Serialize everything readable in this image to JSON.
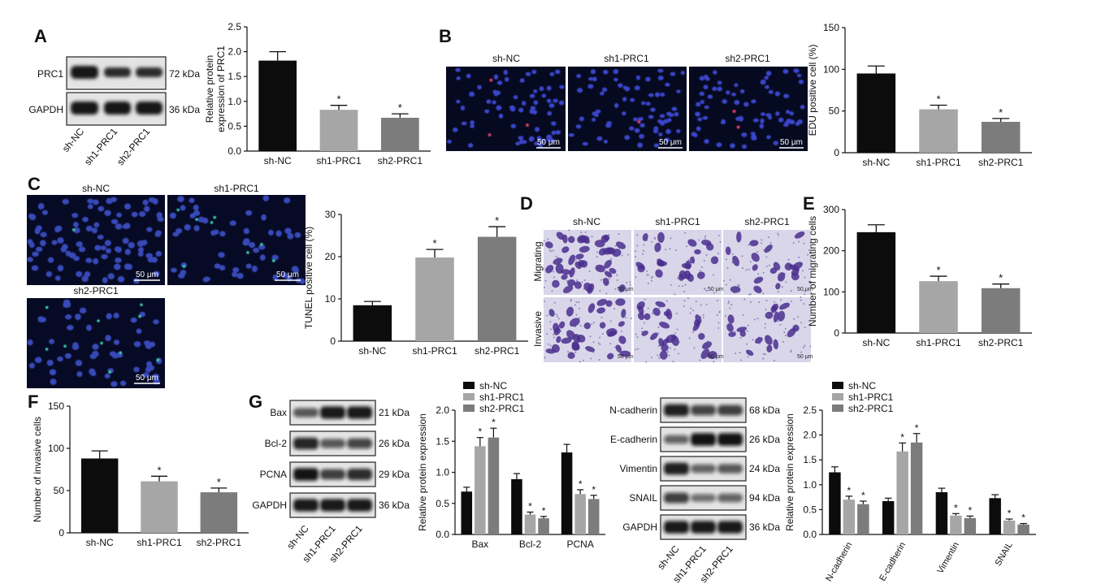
{
  "colors": {
    "black": "#0c0c0c",
    "light_gray": "#a6a6a6",
    "dark_gray": "#7c7c7c"
  },
  "panel_letters": [
    "A",
    "B",
    "C",
    "D",
    "E",
    "F",
    "G"
  ],
  "conditions": [
    "sh-NC",
    "sh1-PRC1",
    "sh2-PRC1"
  ],
  "blotA": {
    "proteins": [
      "PRC1",
      "GAPDH"
    ],
    "kda": [
      "72 kDa",
      "36 kDa"
    ]
  },
  "blotG1": {
    "proteins": [
      "Bax",
      "Bcl-2",
      "PCNA",
      "GAPDH"
    ],
    "kda": [
      "21 kDa",
      "26 kDa",
      "29 kDa",
      "36 kDa"
    ]
  },
  "blotG2": {
    "proteins": [
      "N-cadherin",
      "E-cadherin",
      "Vimentin",
      "SNAIL",
      "GAPDH"
    ],
    "kda": [
      "68 kDa",
      "26 kDa",
      "24 kDa",
      "94 kDa",
      "36 kDa"
    ]
  },
  "micrographs": {
    "scale": "50 μm",
    "row_labels": [
      "Migrating",
      "Invasive"
    ]
  },
  "significance_mark": "*",
  "chart_data": [
    {
      "id": "A",
      "type": "bar",
      "categories": [
        "sh-NC",
        "sh1-PRC1",
        "sh2-PRC1"
      ],
      "values": [
        1.82,
        0.83,
        0.67
      ],
      "errors": [
        0.18,
        0.09,
        0.08
      ],
      "sig": [
        false,
        true,
        true
      ],
      "title": "",
      "xlabel": "",
      "ylabel": "Relative protein expression of PRC1",
      "ylim": [
        0,
        2.5
      ],
      "ticks": [
        0.0,
        0.5,
        1.0,
        1.5,
        2.0,
        2.5
      ],
      "tick_labels": [
        "0.0",
        "0.5",
        "1.0",
        "1.5",
        "2.0",
        "2.5"
      ]
    },
    {
      "id": "B",
      "type": "bar",
      "categories": [
        "sh-NC",
        "sh1-PRC1",
        "sh2-PRC1"
      ],
      "values": [
        95,
        52,
        37
      ],
      "errors": [
        9,
        5,
        4
      ],
      "sig": [
        false,
        true,
        true
      ],
      "title": "",
      "xlabel": "",
      "ylabel": "EDU positive cell (%)",
      "ylim": [
        0,
        150
      ],
      "ticks": [
        0,
        50,
        100,
        150
      ],
      "tick_labels": [
        "0",
        "50",
        "100",
        "150"
      ]
    },
    {
      "id": "C",
      "type": "bar",
      "categories": [
        "sh-NC",
        "sh1-PRC1",
        "sh2-PRC1"
      ],
      "values": [
        8.5,
        19.8,
        24.7
      ],
      "errors": [
        0.9,
        1.9,
        2.4
      ],
      "sig": [
        false,
        true,
        true
      ],
      "title": "",
      "xlabel": "",
      "ylabel": "TUNEL positive cell (%)",
      "ylim": [
        0,
        30
      ],
      "ticks": [
        0,
        10,
        20,
        30
      ],
      "tick_labels": [
        "0",
        "10",
        "20",
        "30"
      ]
    },
    {
      "id": "E",
      "type": "bar",
      "categories": [
        "sh-NC",
        "sh1-PRC1",
        "sh2-PRC1"
      ],
      "values": [
        245,
        126,
        109
      ],
      "errors": [
        18,
        12,
        10
      ],
      "sig": [
        false,
        true,
        true
      ],
      "title": "",
      "xlabel": "",
      "ylabel": "Number of migrating cells",
      "ylim": [
        0,
        300
      ],
      "ticks": [
        0,
        100,
        200,
        300
      ],
      "tick_labels": [
        "0",
        "100",
        "200",
        "300"
      ]
    },
    {
      "id": "F",
      "type": "bar",
      "categories": [
        "sh-NC",
        "sh1-PRC1",
        "sh2-PRC1"
      ],
      "values": [
        88,
        61,
        48
      ],
      "errors": [
        9,
        6,
        5
      ],
      "sig": [
        false,
        true,
        true
      ],
      "title": "",
      "xlabel": "",
      "ylabel": "Number of invasive cells",
      "ylim": [
        0,
        150
      ],
      "ticks": [
        0,
        50,
        100,
        150
      ],
      "tick_labels": [
        "0",
        "50",
        "100",
        "150"
      ]
    },
    {
      "id": "G1",
      "type": "bar",
      "categories": [
        "Bax",
        "Bcl-2",
        "PCNA"
      ],
      "series": [
        {
          "name": "sh-NC",
          "values": [
            0.69,
            0.89,
            1.32
          ],
          "errors": [
            0.07,
            0.09,
            0.13
          ]
        },
        {
          "name": "sh1-PRC1",
          "values": [
            1.42,
            0.32,
            0.65
          ],
          "errors": [
            0.14,
            0.04,
            0.07
          ]
        },
        {
          "name": "sh2-PRC1",
          "values": [
            1.56,
            0.26,
            0.57
          ],
          "errors": [
            0.15,
            0.03,
            0.06
          ]
        }
      ],
      "sig": [
        false,
        true,
        true
      ],
      "title": "",
      "xlabel": "",
      "ylabel": "Relative protein expression",
      "ylim": [
        0,
        2.0
      ],
      "ticks": [
        0.0,
        0.5,
        1.0,
        1.5,
        2.0
      ],
      "tick_labels": [
        "0.0",
        "0.5",
        "1.0",
        "1.5",
        "2.0"
      ],
      "legend": "top-left"
    },
    {
      "id": "G2",
      "type": "bar",
      "categories": [
        "N-cadherin",
        "E-cadherin",
        "Vimentin",
        "SNAIL"
      ],
      "series": [
        {
          "name": "sh-NC",
          "values": [
            1.25,
            0.67,
            0.85,
            0.73
          ],
          "errors": [
            0.11,
            0.06,
            0.08,
            0.07
          ]
        },
        {
          "name": "sh1-PRC1",
          "values": [
            0.7,
            1.67,
            0.38,
            0.28
          ],
          "errors": [
            0.07,
            0.17,
            0.04,
            0.03
          ]
        },
        {
          "name": "sh2-PRC1",
          "values": [
            0.61,
            1.85,
            0.33,
            0.2
          ],
          "errors": [
            0.06,
            0.18,
            0.04,
            0.02
          ]
        }
      ],
      "sig": [
        false,
        true,
        true
      ],
      "title": "",
      "xlabel": "",
      "ylabel": "Relative protein expression",
      "ylim": [
        0,
        2.5
      ],
      "ticks": [
        0.0,
        0.5,
        1.0,
        1.5,
        2.0,
        2.5
      ],
      "tick_labels": [
        "0.0",
        "0.5",
        "1.0",
        "1.5",
        "2.0",
        "2.5"
      ],
      "legend": "top-left"
    }
  ]
}
